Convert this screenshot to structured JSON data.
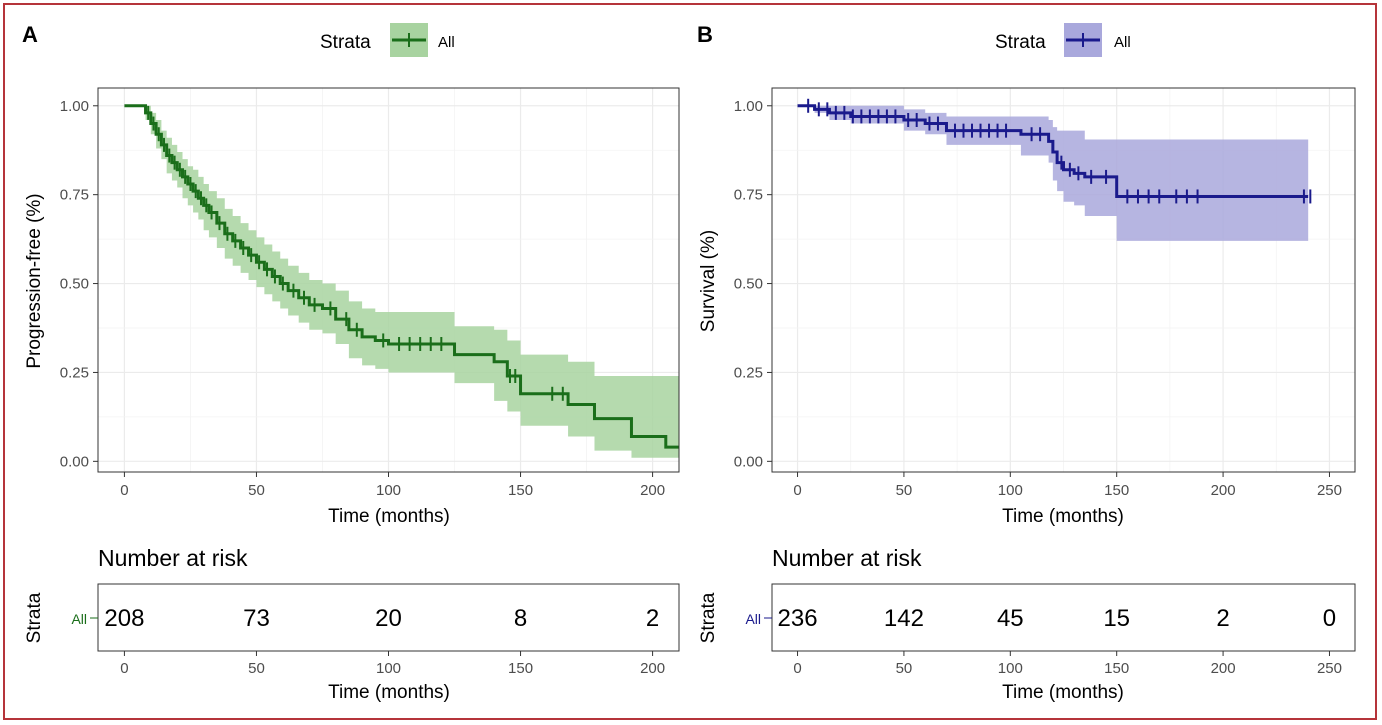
{
  "panels": {
    "a": {
      "label": "A",
      "legend_title": "Strata",
      "legend_label": "All",
      "risk_title": "Number at risk",
      "risk_strata_title": "Strata",
      "risk_row_label": "All",
      "risk_xlabel": "Time (months)"
    },
    "b": {
      "label": "B",
      "legend_title": "Strata",
      "legend_label": "All",
      "risk_title": "Number at risk",
      "risk_strata_title": "Strata",
      "risk_row_label": "All",
      "risk_xlabel": "Time (months)"
    }
  },
  "chart_data": [
    {
      "type": "line",
      "subtype": "kaplan-meier",
      "panel": "A",
      "xlabel": "Time (months)",
      "ylabel": "Progression-free (%)",
      "xlim": [
        -10,
        210
      ],
      "ylim": [
        -0.03,
        1.05
      ],
      "xticks": [
        0,
        50,
        100,
        150,
        200
      ],
      "yticks": [
        0.0,
        0.25,
        0.5,
        0.75,
        1.0
      ],
      "ytick_labels": [
        "0.00",
        "0.25",
        "0.50",
        "0.75",
        "1.00"
      ],
      "grid": true,
      "legend": "top",
      "color": "#1a6e1a",
      "band_color": "#a8d3a0",
      "series": [
        {
          "name": "All",
          "x": [
            0,
            6,
            8,
            10,
            12,
            14,
            16,
            18,
            20,
            22,
            24,
            26,
            28,
            30,
            32,
            35,
            38,
            41,
            44,
            47,
            50,
            53,
            56,
            59,
            62,
            66,
            70,
            75,
            80,
            85,
            90,
            95,
            100,
            110,
            120,
            125,
            130,
            140,
            145,
            150,
            160,
            168,
            178,
            190,
            192,
            200,
            205,
            210
          ],
          "y": [
            1.0,
            1.0,
            0.98,
            0.95,
            0.92,
            0.89,
            0.86,
            0.84,
            0.82,
            0.8,
            0.78,
            0.76,
            0.74,
            0.72,
            0.7,
            0.67,
            0.64,
            0.62,
            0.6,
            0.58,
            0.56,
            0.54,
            0.52,
            0.5,
            0.48,
            0.46,
            0.44,
            0.43,
            0.4,
            0.37,
            0.35,
            0.34,
            0.33,
            0.33,
            0.33,
            0.3,
            0.3,
            0.28,
            0.24,
            0.19,
            0.19,
            0.16,
            0.12,
            0.12,
            0.07,
            0.07,
            0.04,
            0.04
          ],
          "lower": [
            1.0,
            1.0,
            0.96,
            0.92,
            0.88,
            0.85,
            0.81,
            0.79,
            0.77,
            0.74,
            0.72,
            0.7,
            0.68,
            0.65,
            0.63,
            0.6,
            0.57,
            0.55,
            0.53,
            0.51,
            0.49,
            0.47,
            0.45,
            0.43,
            0.41,
            0.39,
            0.37,
            0.36,
            0.33,
            0.29,
            0.27,
            0.26,
            0.25,
            0.25,
            0.25,
            0.22,
            0.22,
            0.17,
            0.14,
            0.1,
            0.1,
            0.07,
            0.03,
            0.03,
            0.01,
            0.01,
            0.01,
            0.01
          ],
          "upper": [
            1.0,
            1.0,
            1.0,
            0.98,
            0.96,
            0.93,
            0.91,
            0.89,
            0.87,
            0.85,
            0.83,
            0.82,
            0.8,
            0.78,
            0.76,
            0.74,
            0.71,
            0.69,
            0.67,
            0.65,
            0.63,
            0.61,
            0.59,
            0.57,
            0.55,
            0.53,
            0.51,
            0.5,
            0.48,
            0.45,
            0.43,
            0.42,
            0.42,
            0.42,
            0.42,
            0.38,
            0.38,
            0.37,
            0.34,
            0.3,
            0.3,
            0.28,
            0.24,
            0.24,
            0.24,
            0.24,
            0.24,
            0.24
          ]
        }
      ],
      "censor_times": [
        9,
        11,
        13,
        15,
        17,
        19,
        21,
        23,
        25,
        27,
        29,
        31,
        33,
        36,
        39,
        42,
        45,
        48,
        51,
        54,
        57,
        60,
        64,
        68,
        72,
        78,
        84,
        88,
        98,
        104,
        108,
        112,
        116,
        120,
        146,
        148,
        162,
        166
      ],
      "risk_table": {
        "times": [
          0,
          50,
          100,
          150,
          200
        ],
        "counts": [
          208,
          73,
          20,
          8,
          2
        ],
        "xlabel": "Time (months)"
      }
    },
    {
      "type": "line",
      "subtype": "kaplan-meier",
      "panel": "B",
      "xlabel": "Time (months)",
      "ylabel": "Survival (%)",
      "xlim": [
        -12,
        262
      ],
      "ylim": [
        -0.03,
        1.05
      ],
      "xticks": [
        0,
        50,
        100,
        150,
        200,
        250
      ],
      "yticks": [
        0.0,
        0.25,
        0.5,
        0.75,
        1.0
      ],
      "ytick_labels": [
        "0.00",
        "0.25",
        "0.50",
        "0.75",
        "1.00"
      ],
      "grid": true,
      "legend": "top",
      "color": "#1a1a8c",
      "band_color": "#a9a8dc",
      "series": [
        {
          "name": "All",
          "x": [
            0,
            8,
            15,
            25,
            50,
            60,
            70,
            100,
            105,
            118,
            120,
            122,
            125,
            130,
            135,
            140,
            150,
            240
          ],
          "y": [
            1.0,
            0.99,
            0.98,
            0.97,
            0.96,
            0.95,
            0.93,
            0.93,
            0.92,
            0.9,
            0.87,
            0.84,
            0.82,
            0.81,
            0.8,
            0.8,
            0.745,
            0.745
          ],
          "lower": [
            1.0,
            0.98,
            0.96,
            0.95,
            0.93,
            0.92,
            0.89,
            0.89,
            0.86,
            0.84,
            0.79,
            0.76,
            0.73,
            0.72,
            0.69,
            0.69,
            0.62,
            0.62
          ],
          "upper": [
            1.0,
            1.0,
            1.0,
            1.0,
            0.99,
            0.98,
            0.97,
            0.97,
            0.97,
            0.96,
            0.94,
            0.93,
            0.93,
            0.93,
            0.905,
            0.905,
            0.905,
            0.905
          ]
        }
      ],
      "censor_times": [
        5,
        10,
        14,
        18,
        22,
        26,
        30,
        34,
        38,
        42,
        46,
        52,
        56,
        62,
        66,
        74,
        78,
        82,
        86,
        90,
        94,
        98,
        110,
        114,
        124,
        128,
        132,
        138,
        145,
        155,
        160,
        165,
        170,
        178,
        183,
        188,
        238,
        241
      ],
      "risk_table": {
        "times": [
          0,
          50,
          100,
          150,
          200,
          250
        ],
        "counts": [
          236,
          142,
          45,
          15,
          2,
          0
        ],
        "xlabel": "Time (months)"
      }
    }
  ]
}
